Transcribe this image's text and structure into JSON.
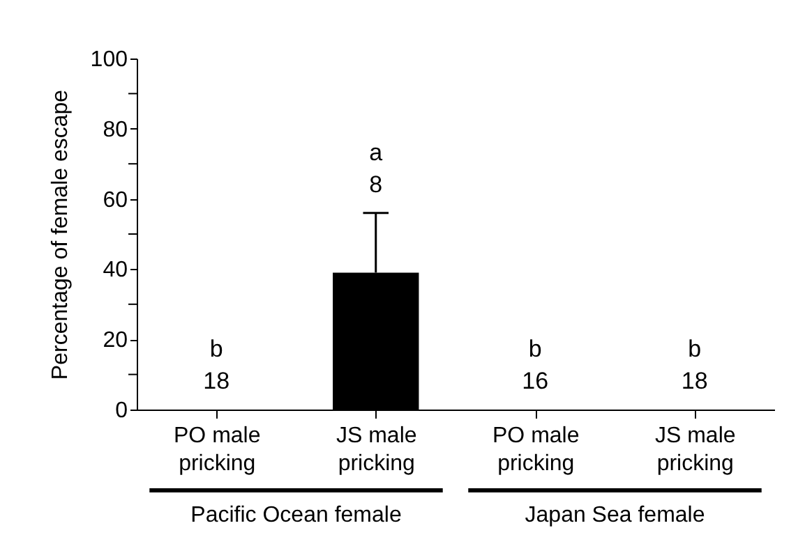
{
  "chart_data": {
    "type": "bar",
    "ylabel": "Percentage of female escape",
    "categories": [
      "PO male pricking",
      "JS male pricking",
      "PO male pricking",
      "JS male pricking"
    ],
    "values": [
      0,
      39,
      0,
      0
    ],
    "color": "#000000",
    "errors": [
      null,
      [
        39,
        56
      ],
      null,
      null
    ],
    "ylim": [
      0,
      100
    ],
    "yticks": [
      0,
      {
        "value": 10,
        "label": null
      },
      20,
      {
        "value": 30,
        "label": null
      },
      40,
      {
        "value": 50,
        "label": null
      },
      60,
      {
        "value": 70,
        "label": null
      },
      80,
      {
        "value": 90,
        "label": null
      },
      100
    ],
    "grid": false,
    "annotations": [
      "b",
      "18",
      "a",
      "8",
      "b",
      "16",
      "b",
      "18",
      "Pacific Ocean female",
      "Japan Sea female"
    ]
  }
}
